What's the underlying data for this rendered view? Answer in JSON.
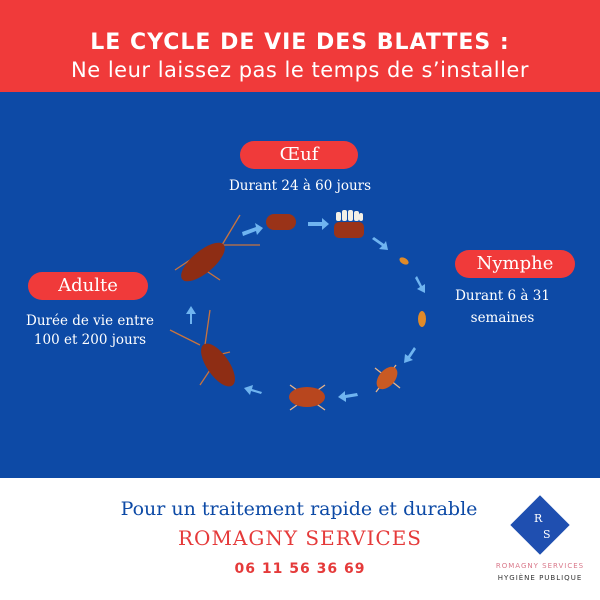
{
  "header": {
    "title": "LE CYCLE DE VIE DES BLATTES :",
    "subtitle": "Ne leur laissez pas le temps de s’installer"
  },
  "stages": {
    "egg": {
      "label": "Œuf",
      "desc": "Durant 24 à 60 jours"
    },
    "nymph": {
      "label": "Nymphe",
      "desc_line1": "Durant 6 à 31",
      "desc_line2": "semaines"
    },
    "adult": {
      "label": "Adulte",
      "desc_line1": "Durée de vie entre",
      "desc_line2": "100 et 200 jours"
    }
  },
  "footer": {
    "tagline": "Pour un traitement rapide et durable",
    "company": "ROMAGNY SERVICES",
    "phone": "06 11 56 36 69"
  },
  "logo": {
    "letter1": "R",
    "letter2": "S",
    "name": "ROMAGNY SERVICES",
    "subtitle": "HYGIÈNE PUBLIQUE"
  },
  "colors": {
    "red": "#f03a3a",
    "blue": "#0d4aa6",
    "arrow": "#6fb4f0",
    "bug": "#9a3318"
  }
}
